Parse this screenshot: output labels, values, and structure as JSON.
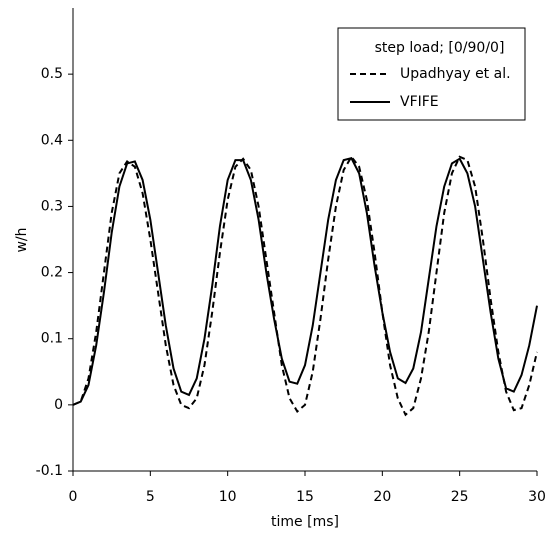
{
  "chart_data": {
    "type": "line",
    "xlabel": "time [ms]",
    "ylabel": "w/h",
    "legend_title": "step load; [0/90/0]",
    "legend": "upper right",
    "x": [
      0,
      0.5,
      1,
      1.5,
      2,
      2.5,
      3,
      3.5,
      4,
      4.5,
      5,
      5.5,
      6,
      6.5,
      7,
      7.5,
      8,
      8.5,
      9,
      9.5,
      10,
      10.5,
      11,
      11.5,
      12,
      12.5,
      13,
      13.5,
      14,
      14.5,
      15,
      15.5,
      16,
      16.5,
      17,
      17.5,
      18,
      18.5,
      19,
      19.5,
      20,
      20.5,
      21,
      21.5,
      22,
      22.5,
      23,
      23.5,
      24,
      24.5,
      25,
      25.5,
      26,
      26.5,
      27,
      27.5,
      28,
      28.5,
      29,
      29.5,
      30
    ],
    "series": [
      {
        "name": "Upadhyay et al.",
        "color": "#000000",
        "dash": true,
        "values": [
          0,
          0.005,
          0.04,
          0.11,
          0.2,
          0.29,
          0.35,
          0.368,
          0.36,
          0.32,
          0.25,
          0.17,
          0.09,
          0.03,
          0.0,
          -0.005,
          0.01,
          0.06,
          0.14,
          0.23,
          0.31,
          0.36,
          0.372,
          0.355,
          0.3,
          0.22,
          0.14,
          0.06,
          0.01,
          -0.01,
          0.0,
          0.05,
          0.13,
          0.22,
          0.3,
          0.355,
          0.375,
          0.36,
          0.31,
          0.23,
          0.14,
          0.06,
          0.01,
          -0.015,
          -0.005,
          0.04,
          0.11,
          0.2,
          0.29,
          0.35,
          0.375,
          0.37,
          0.33,
          0.25,
          0.16,
          0.08,
          0.02,
          -0.008,
          -0.005,
          0.03,
          0.08
        ]
      },
      {
        "name": "VFIFE",
        "color": "#000000",
        "dash": false,
        "values": [
          0,
          0.005,
          0.03,
          0.09,
          0.17,
          0.26,
          0.33,
          0.365,
          0.368,
          0.34,
          0.28,
          0.2,
          0.12,
          0.055,
          0.02,
          0.015,
          0.04,
          0.1,
          0.18,
          0.27,
          0.34,
          0.37,
          0.37,
          0.34,
          0.28,
          0.2,
          0.13,
          0.07,
          0.035,
          0.032,
          0.06,
          0.12,
          0.2,
          0.28,
          0.34,
          0.37,
          0.373,
          0.35,
          0.29,
          0.21,
          0.14,
          0.08,
          0.04,
          0.033,
          0.055,
          0.11,
          0.19,
          0.27,
          0.33,
          0.365,
          0.372,
          0.35,
          0.3,
          0.22,
          0.14,
          0.07,
          0.025,
          0.02,
          0.045,
          0.09,
          0.15
        ]
      }
    ],
    "xlim": [
      0,
      30
    ],
    "xticks": [
      0,
      5,
      10,
      15,
      20,
      25,
      30
    ],
    "ylim": [
      -0.1,
      0.6
    ],
    "yticks": [
      -0.1,
      0,
      0.1,
      0.2,
      0.3,
      0.4,
      0.5
    ]
  }
}
